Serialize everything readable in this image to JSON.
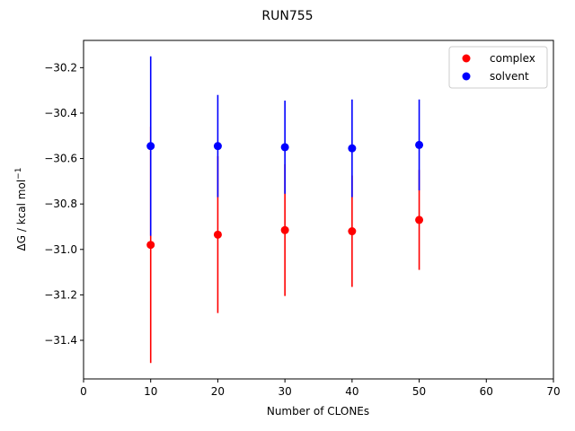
{
  "chart_data": {
    "type": "scatter",
    "title": "RUN755",
    "xlabel": "Number of CLONEs",
    "ylabel_main": "ΔG / kcal mol",
    "ylabel_sup": "−1",
    "xlim": [
      0,
      70
    ],
    "ylim": [
      -31.57,
      -30.08
    ],
    "xticks": [
      0,
      10,
      20,
      30,
      40,
      50,
      60,
      70
    ],
    "xtick_labels": [
      "0",
      "10",
      "20",
      "30",
      "40",
      "50",
      "60",
      "70"
    ],
    "yticks": [
      -30.2,
      -30.4,
      -30.6,
      -30.8,
      -31.0,
      -31.2,
      -31.4
    ],
    "ytick_labels": [
      "−30.2",
      "−30.4",
      "−30.6",
      "−30.8",
      "−31.0",
      "−31.2",
      "−31.4"
    ],
    "grid": false,
    "legend_position": "top-right",
    "series": [
      {
        "name": "complex",
        "color": "#ff0000",
        "x": [
          10,
          20,
          30,
          40,
          50
        ],
        "y": [
          -30.98,
          -30.935,
          -30.915,
          -30.92,
          -30.87
        ],
        "err": [
          0.52,
          0.345,
          0.29,
          0.245,
          0.22
        ]
      },
      {
        "name": "solvent",
        "color": "#0000ff",
        "x": [
          10,
          20,
          30,
          40,
          50
        ],
        "y": [
          -30.545,
          -30.545,
          -30.55,
          -30.555,
          -30.54
        ],
        "err": [
          0.395,
          0.225,
          0.205,
          0.215,
          0.2
        ]
      }
    ]
  }
}
